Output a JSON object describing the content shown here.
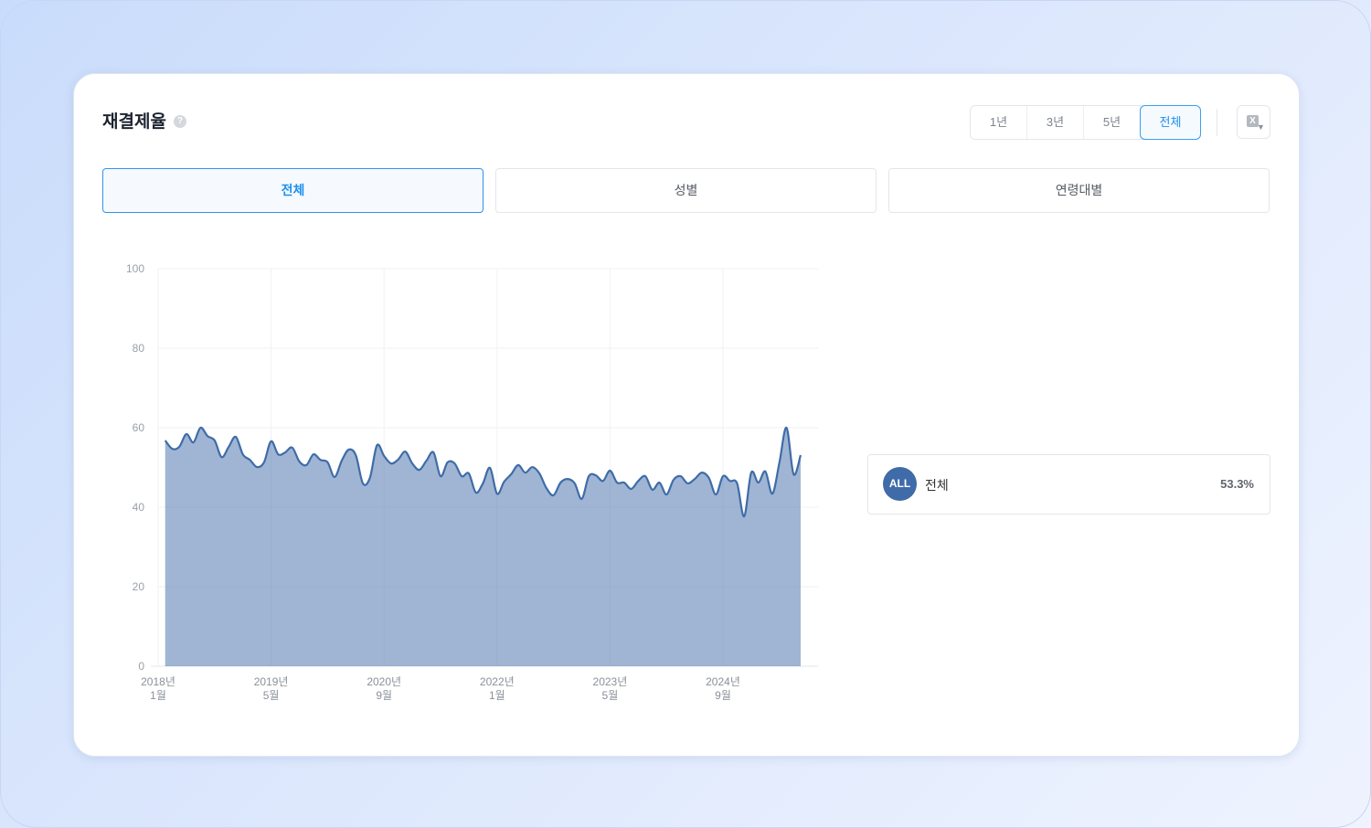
{
  "header": {
    "title": "재결제율",
    "help_icon": "question-circle-icon"
  },
  "period_filter": {
    "options": [
      "1년",
      "3년",
      "5년",
      "전체"
    ],
    "selected": "전체"
  },
  "export_button": {
    "icon": "excel-download-icon"
  },
  "segment_tabs": {
    "items": [
      "전체",
      "성별",
      "연령대별"
    ],
    "selected": "전체"
  },
  "legend": {
    "items": [
      {
        "badge": "ALL",
        "label": "전체",
        "value": "53.3%",
        "color": "#3f6ca8"
      }
    ]
  },
  "chart_data": {
    "type": "area",
    "ylim": [
      0,
      100
    ],
    "y_ticks": [
      "0",
      "20",
      "40",
      "60",
      "80",
      "100"
    ],
    "x_ticks": [
      {
        "value": "2018-01",
        "label": [
          "2018년",
          "1월"
        ]
      },
      {
        "value": "2019-05",
        "label": [
          "2019년",
          "5월"
        ]
      },
      {
        "value": "2020-09",
        "label": [
          "2020년",
          "9월"
        ]
      },
      {
        "value": "2022-01",
        "label": [
          "2022년",
          "1월"
        ]
      },
      {
        "value": "2023-05",
        "label": [
          "2023년",
          "5월"
        ]
      },
      {
        "value": "2024-09",
        "label": [
          "2024년",
          "9월"
        ]
      }
    ],
    "grid": true,
    "series": [
      {
        "name": "전체",
        "color": "#3f6ca8",
        "x": [
          "2018-02",
          "2018-03",
          "2018-04",
          "2018-05",
          "2018-06",
          "2018-07",
          "2018-08",
          "2018-09",
          "2018-10",
          "2018-11",
          "2018-12",
          "2019-01",
          "2019-02",
          "2019-03",
          "2019-04",
          "2019-05",
          "2019-06",
          "2019-07",
          "2019-08",
          "2019-09",
          "2019-10",
          "2019-11",
          "2019-12",
          "2020-01",
          "2020-02",
          "2020-03",
          "2020-04",
          "2020-05",
          "2020-06",
          "2020-07",
          "2020-08",
          "2020-09",
          "2020-10",
          "2020-11",
          "2020-12",
          "2021-01",
          "2021-02",
          "2021-03",
          "2021-04",
          "2021-05",
          "2021-06",
          "2021-07",
          "2021-08",
          "2021-09",
          "2021-10",
          "2021-11",
          "2021-12",
          "2022-01",
          "2022-02",
          "2022-03",
          "2022-04",
          "2022-05",
          "2022-06",
          "2022-07",
          "2022-08",
          "2022-09",
          "2022-10",
          "2022-11",
          "2022-12",
          "2023-01",
          "2023-02",
          "2023-03",
          "2023-04",
          "2023-05",
          "2023-06",
          "2023-07",
          "2023-08",
          "2023-09",
          "2023-10",
          "2023-11",
          "2023-12",
          "2024-01",
          "2024-02",
          "2024-03",
          "2024-04",
          "2024-05",
          "2024-06",
          "2024-07",
          "2024-08",
          "2024-09",
          "2024-10",
          "2024-11",
          "2024-12",
          "2025-01",
          "2025-02",
          "2025-03",
          "2025-04",
          "2025-05",
          "2025-06",
          "2025-07",
          "2025-08"
        ],
        "values": [
          56.8,
          54.7,
          55.2,
          58.4,
          56.3,
          60.0,
          57.9,
          56.8,
          52.6,
          55.2,
          57.7,
          53.3,
          51.9,
          50.1,
          51.3,
          56.6,
          53.3,
          53.8,
          55.0,
          51.5,
          50.6,
          53.3,
          51.9,
          51.3,
          47.6,
          51.7,
          54.5,
          53.1,
          46.0,
          47.4,
          55.6,
          52.9,
          51.0,
          52.0,
          54.0,
          51.0,
          49.4,
          51.7,
          53.8,
          47.8,
          51.3,
          51.0,
          47.8,
          48.5,
          43.7,
          46.0,
          49.9,
          43.4,
          46.4,
          48.3,
          50.6,
          48.7,
          50.1,
          48.5,
          44.8,
          43.0,
          46.2,
          47.1,
          46.0,
          42.1,
          47.8,
          48.0,
          46.6,
          49.2,
          46.2,
          46.2,
          44.6,
          46.6,
          47.8,
          44.4,
          46.2,
          43.2,
          46.9,
          47.8,
          46.0,
          47.1,
          48.7,
          47.4,
          43.2,
          47.8,
          46.6,
          46.0,
          37.7,
          48.7,
          46.2,
          49.0,
          43.4,
          51.3,
          60.0,
          48.3,
          53.1
        ]
      }
    ]
  }
}
